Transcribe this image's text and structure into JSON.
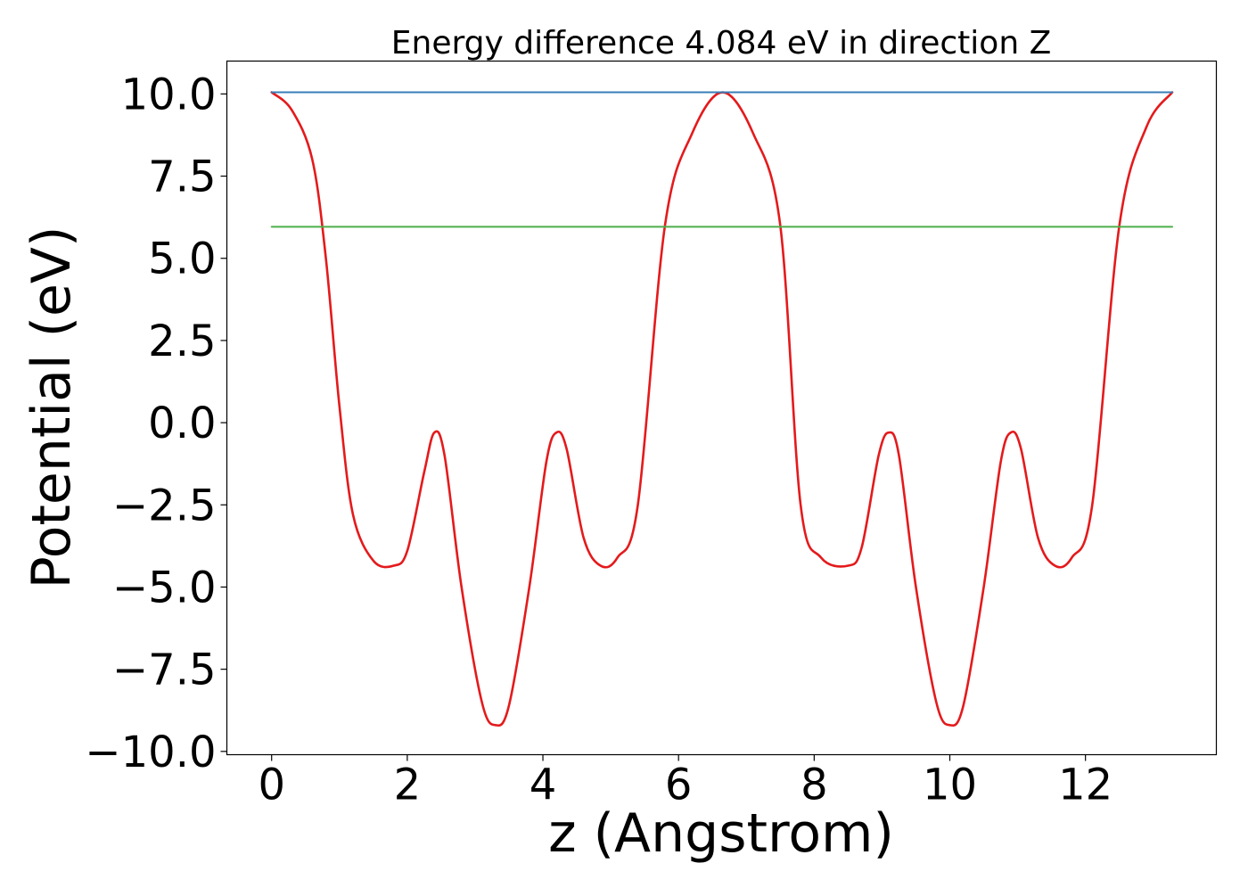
{
  "chart_data": {
    "type": "line",
    "title": "Energy difference 4.084 eV in direction Z",
    "xlabel": "z (Angstrom)",
    "ylabel": "Potential (eV)",
    "xlim": [
      -0.66,
      13.93
    ],
    "ylim": [
      -10.1,
      11.0
    ],
    "xticks": [
      0,
      2,
      4,
      6,
      8,
      10,
      12
    ],
    "xtick_labels": [
      "0",
      "2",
      "4",
      "6",
      "8",
      "10",
      "12"
    ],
    "yticks": [
      -10.0,
      -7.5,
      -5.0,
      -2.5,
      0.0,
      2.5,
      5.0,
      7.5,
      10.0
    ],
    "ytick_labels": [
      "−10.0",
      "−7.5",
      "−5.0",
      "−2.5",
      "0.0",
      "2.5",
      "5.0",
      "7.5",
      "10.0"
    ],
    "grid": false,
    "legend": "none",
    "series": [
      {
        "color": "#e41a1c",
        "x": [
          0.0,
          0.3,
          0.6,
          0.8,
          1.0,
          1.2,
          1.5,
          1.8,
          2.0,
          2.25,
          2.4,
          2.55,
          2.8,
          3.1,
          3.3,
          3.5,
          3.8,
          4.05,
          4.2,
          4.35,
          4.6,
          4.85,
          5.1,
          5.4,
          5.8,
          6.2,
          6.65,
          7.1,
          7.5,
          7.8,
          8.1,
          8.5,
          8.7,
          8.95,
          9.1,
          9.25,
          9.5,
          9.8,
          10.0,
          10.2,
          10.5,
          10.75,
          10.9,
          11.05,
          11.3,
          11.55,
          11.8,
          12.1,
          12.5,
          12.9,
          13.28
        ],
        "y": [
          10.05,
          9.5,
          8.0,
          5.0,
          0.5,
          -2.8,
          -4.2,
          -4.35,
          -3.9,
          -1.5,
          -0.3,
          -1.0,
          -5.0,
          -8.5,
          -9.2,
          -8.6,
          -5.0,
          -1.2,
          -0.3,
          -0.8,
          -3.5,
          -4.35,
          -4.1,
          -2.5,
          6.0,
          8.8,
          10.05,
          8.8,
          6.0,
          -2.5,
          -4.1,
          -4.35,
          -3.8,
          -1.0,
          -0.3,
          -1.0,
          -5.0,
          -8.5,
          -9.2,
          -8.6,
          -5.0,
          -1.2,
          -0.3,
          -0.8,
          -3.5,
          -4.35,
          -4.1,
          -2.5,
          6.0,
          9.0,
          10.05
        ]
      },
      {
        "color": "#377eb8",
        "x": [
          0.0,
          13.28
        ],
        "y": [
          10.05,
          10.05
        ]
      },
      {
        "color": "#4daf4a",
        "x": [
          0.0,
          13.28
        ],
        "y": [
          5.96,
          5.96
        ]
      }
    ]
  }
}
